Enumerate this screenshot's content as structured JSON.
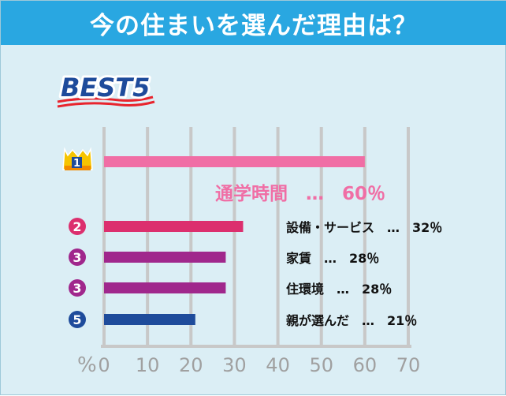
{
  "header": {
    "title": "今の住まいを選んだ理由は？"
  },
  "badge": {
    "text": "BEST5"
  },
  "colors": {
    "header_bg": "#29a7e1",
    "panel_bg": "#dbeef5",
    "grid": "#c8c8c8",
    "axis_text": "#a0a0a0"
  },
  "chart_data": {
    "type": "bar",
    "orientation": "horizontal",
    "categories": [
      "通学時間",
      "設備・サービス",
      "家賃",
      "住環境",
      "親が選んだ"
    ],
    "values": [
      60,
      32,
      28,
      28,
      21
    ],
    "ranks": [
      "1",
      "2",
      "3",
      "3",
      "5"
    ],
    "labels": [
      "通学時間　…　60％",
      "設備・サービス　…　32％",
      "家賃　…　28％",
      "住環境　…　28％",
      "親が選んだ　…　21％"
    ],
    "bar_colors": [
      "#f06ea5",
      "#dc2f6e",
      "#a0278c",
      "#a0278c",
      "#1e4b9b"
    ],
    "label_colors": [
      "#f06ea5",
      "#111111",
      "#111111",
      "#111111",
      "#111111"
    ],
    "rank_styles": [
      "crown",
      "circle",
      "circle",
      "circle",
      "circle"
    ],
    "rank_colors": [
      "#f6c400",
      "#dc2f6e",
      "#a0278c",
      "#a0278c",
      "#1e4b9b"
    ],
    "xlim": [
      0,
      70
    ],
    "xticks": [
      "0",
      "10",
      "20",
      "30",
      "40",
      "50",
      "60",
      "70"
    ],
    "unit_label": "%",
    "grid": true
  }
}
